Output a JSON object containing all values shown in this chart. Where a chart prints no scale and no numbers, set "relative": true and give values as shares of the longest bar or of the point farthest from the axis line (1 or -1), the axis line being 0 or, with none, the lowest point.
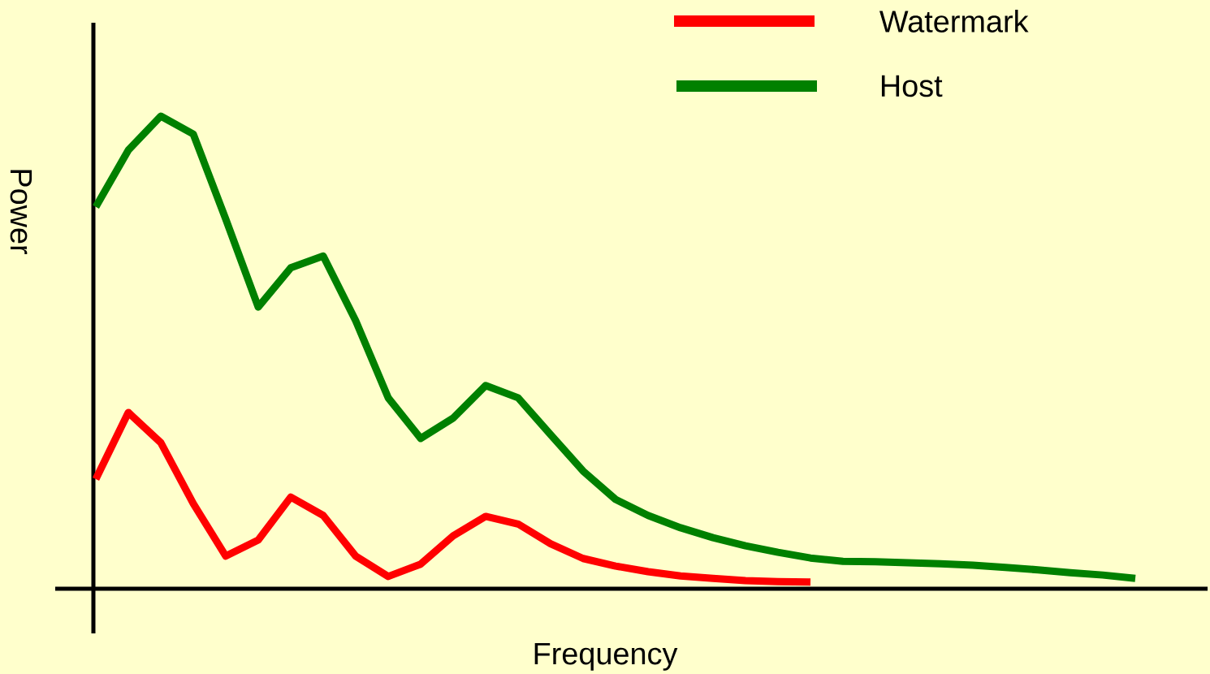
{
  "chart_data": {
    "type": "line",
    "relative": true,
    "xlabel": "Frequency",
    "ylabel": "Power",
    "legend": "top right",
    "categories": [
      null,
      null,
      null,
      null,
      null,
      null,
      null,
      null,
      null,
      null,
      null,
      null,
      null,
      null,
      null,
      null,
      null,
      null,
      null,
      null,
      null,
      null,
      null,
      null,
      null,
      null,
      null,
      null,
      null,
      null,
      null,
      null,
      null
    ],
    "series": [
      {
        "name": "Watermark",
        "color": "#ff0000",
        "values": [
          0.232,
          0.373,
          0.309,
          0.18,
          0.069,
          0.103,
          0.194,
          0.155,
          0.069,
          0.026,
          0.052,
          0.112,
          0.153,
          0.137,
          0.095,
          0.064,
          0.048,
          0.036,
          0.027,
          0.022,
          0.017,
          0.015,
          0.014,
          null,
          null,
          null,
          null,
          null,
          null,
          null,
          null,
          null,
          null
        ]
      },
      {
        "name": "Host",
        "color": "#008000",
        "values": [
          0.808,
          0.928,
          1,
          0.962,
          0.782,
          0.596,
          0.679,
          0.704,
          0.567,
          0.404,
          0.318,
          0.361,
          0.43,
          0.404,
          0.326,
          0.249,
          0.189,
          0.155,
          0.129,
          0.108,
          0.091,
          0.077,
          0.065,
          0.058,
          0.057,
          0.055,
          0.053,
          0.05,
          0.045,
          0.04,
          0.034,
          0.029,
          0.022
        ]
      }
    ]
  }
}
